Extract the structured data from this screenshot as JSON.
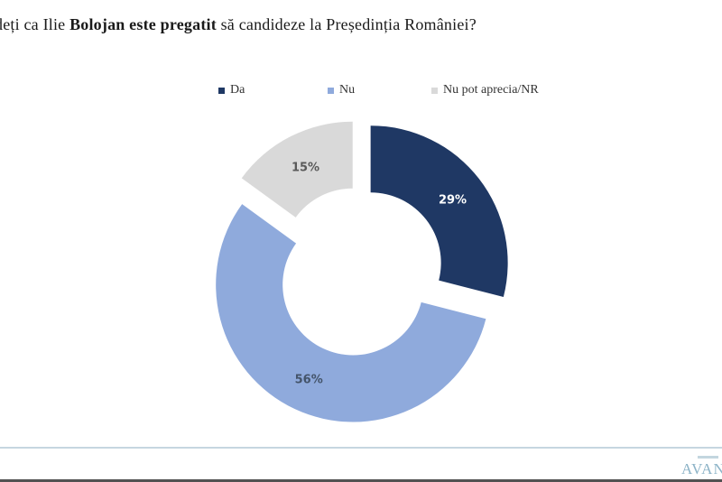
{
  "title": {
    "prefix": "deți ca Ilie ",
    "bold": "Bolojan este pregatit",
    "suffix": " să candideze la Președinția României?"
  },
  "chart_data": {
    "type": "pie",
    "subtype": "donut",
    "title": "deți ca Ilie Bolojan este pregatit să candideze la Președinția României?",
    "segments": [
      {
        "label": "Da",
        "value": 29,
        "color": "#1F3864",
        "label_text": "29%",
        "label_color": "#FFFFFF"
      },
      {
        "label": "Nu",
        "value": 56,
        "color": "#8FAADC",
        "label_text": "56%",
        "label_color": "#44546A"
      },
      {
        "label": "Nu pot aprecia/NR",
        "value": 15,
        "color": "#D9D9D9",
        "label_text": "15%",
        "label_color": "#595959"
      }
    ],
    "start_angle_deg": 0,
    "direction": "clockwise",
    "donut_hole_ratio": 0.51,
    "exploded": true,
    "legend_position": "top",
    "data_label_format": "percent"
  },
  "footer": {
    "logo_text": "AVAN"
  }
}
